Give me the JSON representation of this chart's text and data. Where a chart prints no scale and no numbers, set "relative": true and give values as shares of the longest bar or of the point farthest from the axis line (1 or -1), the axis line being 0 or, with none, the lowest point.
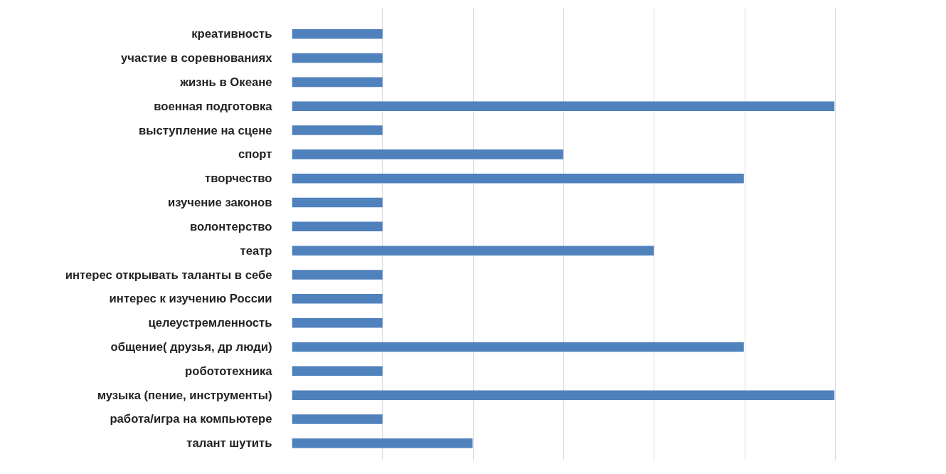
{
  "chart_data": {
    "type": "bar",
    "orientation": "horizontal",
    "relative": true,
    "grid": "x",
    "color": "#4f81bd",
    "categories": [
      "креативность",
      "участие в соревнованиях",
      "жизнь в Океане",
      "военная подготовка",
      "выступление на сцене",
      "спорт",
      "творчество",
      "изучение законов",
      "волонтерство",
      "театр",
      "интерес открывать таланты в себе",
      "интерес к изучению России",
      "целеустремленность",
      "общение( друзья, др люди)",
      "робототехника",
      "музыка (пение, инструменты)",
      "работа/игра на компьютере",
      "талант шутить"
    ],
    "values": [
      0.167,
      0.167,
      0.167,
      1,
      0.167,
      0.5,
      0.833,
      0.167,
      0.167,
      0.667,
      0.167,
      0.167,
      0.167,
      0.833,
      0.167,
      1,
      0.167,
      0.333
    ]
  }
}
